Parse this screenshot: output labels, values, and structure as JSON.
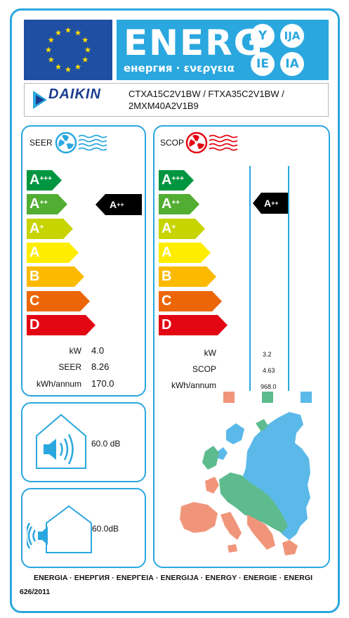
{
  "header": {
    "energy_word": "ENERG",
    "energy_sub": "енергия · ενεργεια",
    "lang_codes": [
      "Y",
      "IJA",
      "IE",
      "IA"
    ]
  },
  "brand": {
    "name": "DAIKIN",
    "models": [
      "CTXA15C2V1BW / FTXA35C2V1BW /",
      "2MXM40A2V1B9"
    ]
  },
  "cooling": {
    "title": "SEER",
    "classes": [
      "A+++",
      "A++",
      "A+",
      "A",
      "B",
      "C",
      "D"
    ],
    "rating": "A++",
    "rows": [
      {
        "label": "kW",
        "value": "4.0"
      },
      {
        "label": "SEER",
        "value": "8.26"
      },
      {
        "label": "kWh/annum",
        "value": "170.0"
      }
    ]
  },
  "heating": {
    "title": "SCOP",
    "classes": [
      "A+++",
      "A++",
      "A+",
      "A",
      "B",
      "C",
      "D"
    ],
    "rating": "A++",
    "rows": [
      {
        "label": "kW",
        "value": "3.2"
      },
      {
        "label": "SCOP",
        "value": "4.63"
      },
      {
        "label": "kWh/annum",
        "value": "968.0"
      }
    ],
    "climate_colors": [
      "#f0957a",
      "#5dbb8e",
      "#5bb9ea"
    ]
  },
  "noise": {
    "indoor": "60.0 dB",
    "outdoor": "60.0dB"
  },
  "footer": {
    "languages": "ENERGIA · ЕНЕРГИЯ · ΕΝΕΡΓΕΙΑ · ENERGIJA · ENERGY · ENERGIE · ENERGI",
    "regulation": "626/2011"
  },
  "class_colors": [
    "#009640",
    "#52ae32",
    "#c8d400",
    "#ffed00",
    "#fbba00",
    "#ec6608",
    "#e30613"
  ]
}
